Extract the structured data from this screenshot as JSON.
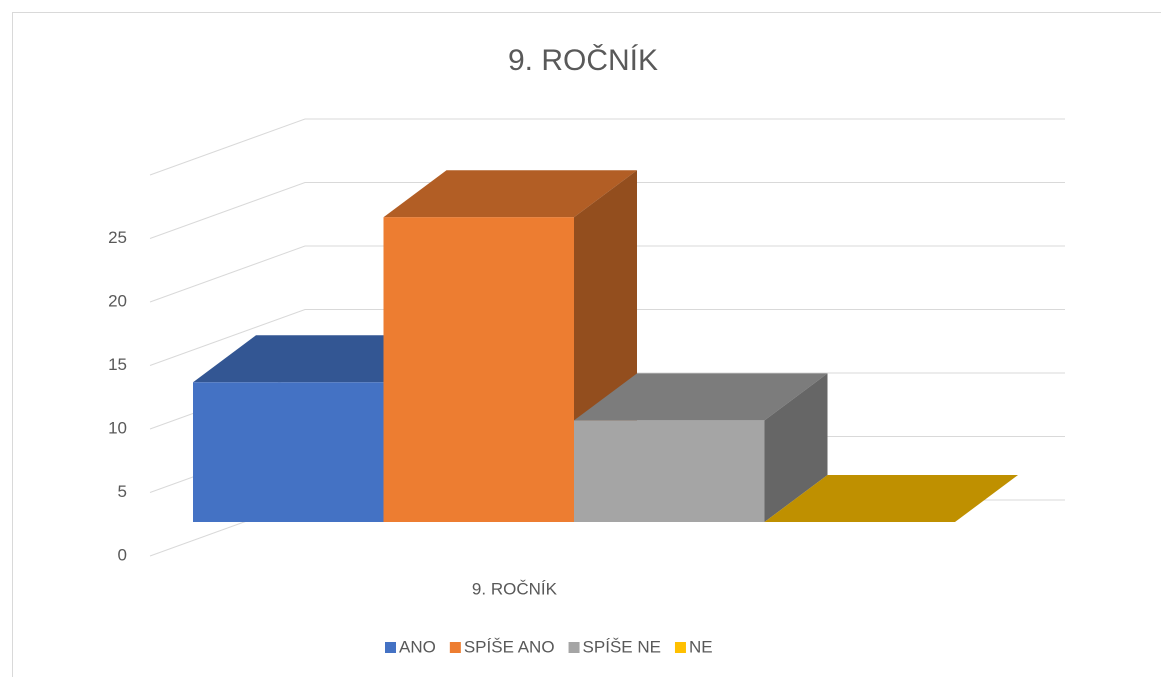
{
  "chart_data": {
    "type": "bar3d",
    "title": "9. ROČNÍK",
    "categories": [
      "9. ROČNÍK"
    ],
    "series": [
      {
        "name": "ANO",
        "color": "#4472c4",
        "values": [
          11
        ]
      },
      {
        "name": "SPÍŠE ANO",
        "color": "#ed7d31",
        "values": [
          24
        ]
      },
      {
        "name": "SPÍŠE NE",
        "color": "#a5a5a5",
        "values": [
          8
        ]
      },
      {
        "name": "NE",
        "color": "#ffc000",
        "values": [
          0
        ]
      }
    ],
    "ylim": [
      0,
      30
    ],
    "yticks": [
      0,
      5,
      10,
      15,
      20,
      25
    ],
    "grid": true,
    "legend": "bottom"
  }
}
